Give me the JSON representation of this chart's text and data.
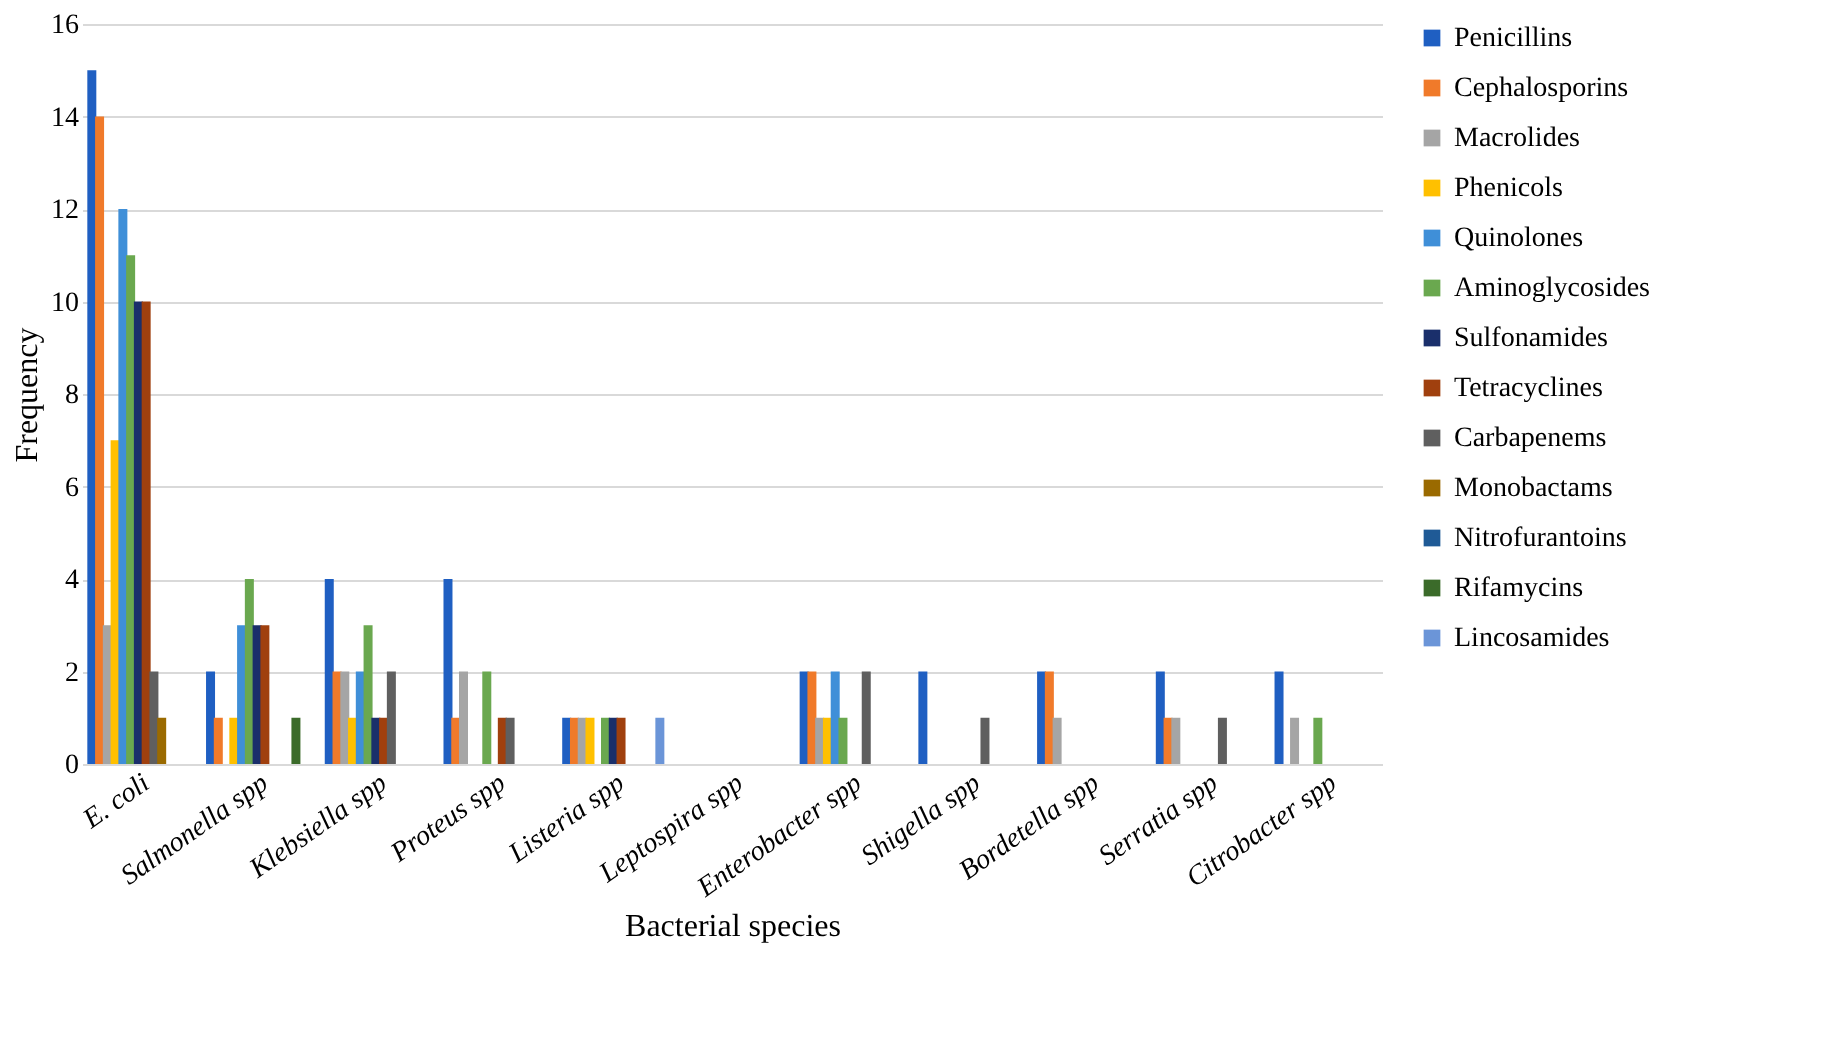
{
  "chart_data": {
    "type": "bar",
    "xlabel": "Bacterial species",
    "ylabel": "Frequency",
    "categories": [
      "E. coli",
      "Salmonella spp",
      "Klebsiella spp",
      "Proteus spp",
      "Listeria spp",
      "Leptospira spp",
      "Enterobacter spp",
      "Shigella spp",
      "Bordetella spp",
      "Serratia spp",
      "Citrobacter spp"
    ],
    "series": [
      {
        "name": "Penicillins",
        "color": "#1f5fc2",
        "values": [
          15,
          2,
          4,
          4,
          1,
          0,
          2,
          2,
          2,
          2,
          2
        ]
      },
      {
        "name": "Cephalosporins",
        "color": "#f07a2a",
        "values": [
          14,
          1,
          2,
          1,
          1,
          0,
          2,
          0,
          2,
          1,
          0
        ]
      },
      {
        "name": "Macrolides",
        "color": "#a5a5a5",
        "values": [
          3,
          0,
          2,
          2,
          1,
          0,
          1,
          0,
          1,
          1,
          1
        ]
      },
      {
        "name": "Phenicols",
        "color": "#ffc000",
        "values": [
          7,
          1,
          1,
          0,
          1,
          0,
          1,
          0,
          0,
          0,
          0
        ]
      },
      {
        "name": "Quinolones",
        "color": "#3f8fd8",
        "values": [
          12,
          3,
          2,
          0,
          0,
          0,
          2,
          0,
          0,
          0,
          0
        ]
      },
      {
        "name": "Aminoglycosides",
        "color": "#6aa84f",
        "values": [
          11,
          4,
          3,
          2,
          1,
          0,
          1,
          0,
          0,
          0,
          1
        ]
      },
      {
        "name": "Sulfonamides",
        "color": "#1a2f6b",
        "values": [
          10,
          3,
          1,
          0,
          1,
          0,
          0,
          0,
          0,
          0,
          0
        ]
      },
      {
        "name": "Tetracyclines",
        "color": "#a0400e",
        "values": [
          10,
          3,
          1,
          1,
          1,
          0,
          0,
          0,
          0,
          0,
          0
        ]
      },
      {
        "name": "Carbapenems",
        "color": "#5f5f5f",
        "values": [
          2,
          0,
          2,
          1,
          0,
          0,
          2,
          1,
          0,
          1,
          0
        ]
      },
      {
        "name": "Monobactams",
        "color": "#9a6a00",
        "values": [
          1,
          0,
          0,
          0,
          0,
          0,
          0,
          0,
          0,
          0,
          0
        ]
      },
      {
        "name": "Nitrofurantoins",
        "color": "#1f5a96",
        "values": [
          0,
          0,
          0,
          0,
          0,
          0,
          0,
          0,
          0,
          0,
          0
        ]
      },
      {
        "name": "Rifamycins",
        "color": "#3b6b2a",
        "values": [
          0,
          1,
          0,
          0,
          0,
          0,
          0,
          0,
          0,
          0,
          0
        ]
      },
      {
        "name": "Lincosamides",
        "color": "#6b95d8",
        "values": [
          0,
          0,
          0,
          0,
          1,
          0,
          0,
          0,
          0,
          0,
          0
        ]
      }
    ],
    "ylim": [
      0,
      16
    ],
    "yticks": [
      0,
      2,
      4,
      6,
      8,
      10,
      12,
      14,
      16
    ],
    "grid": "y",
    "legend": "right"
  }
}
